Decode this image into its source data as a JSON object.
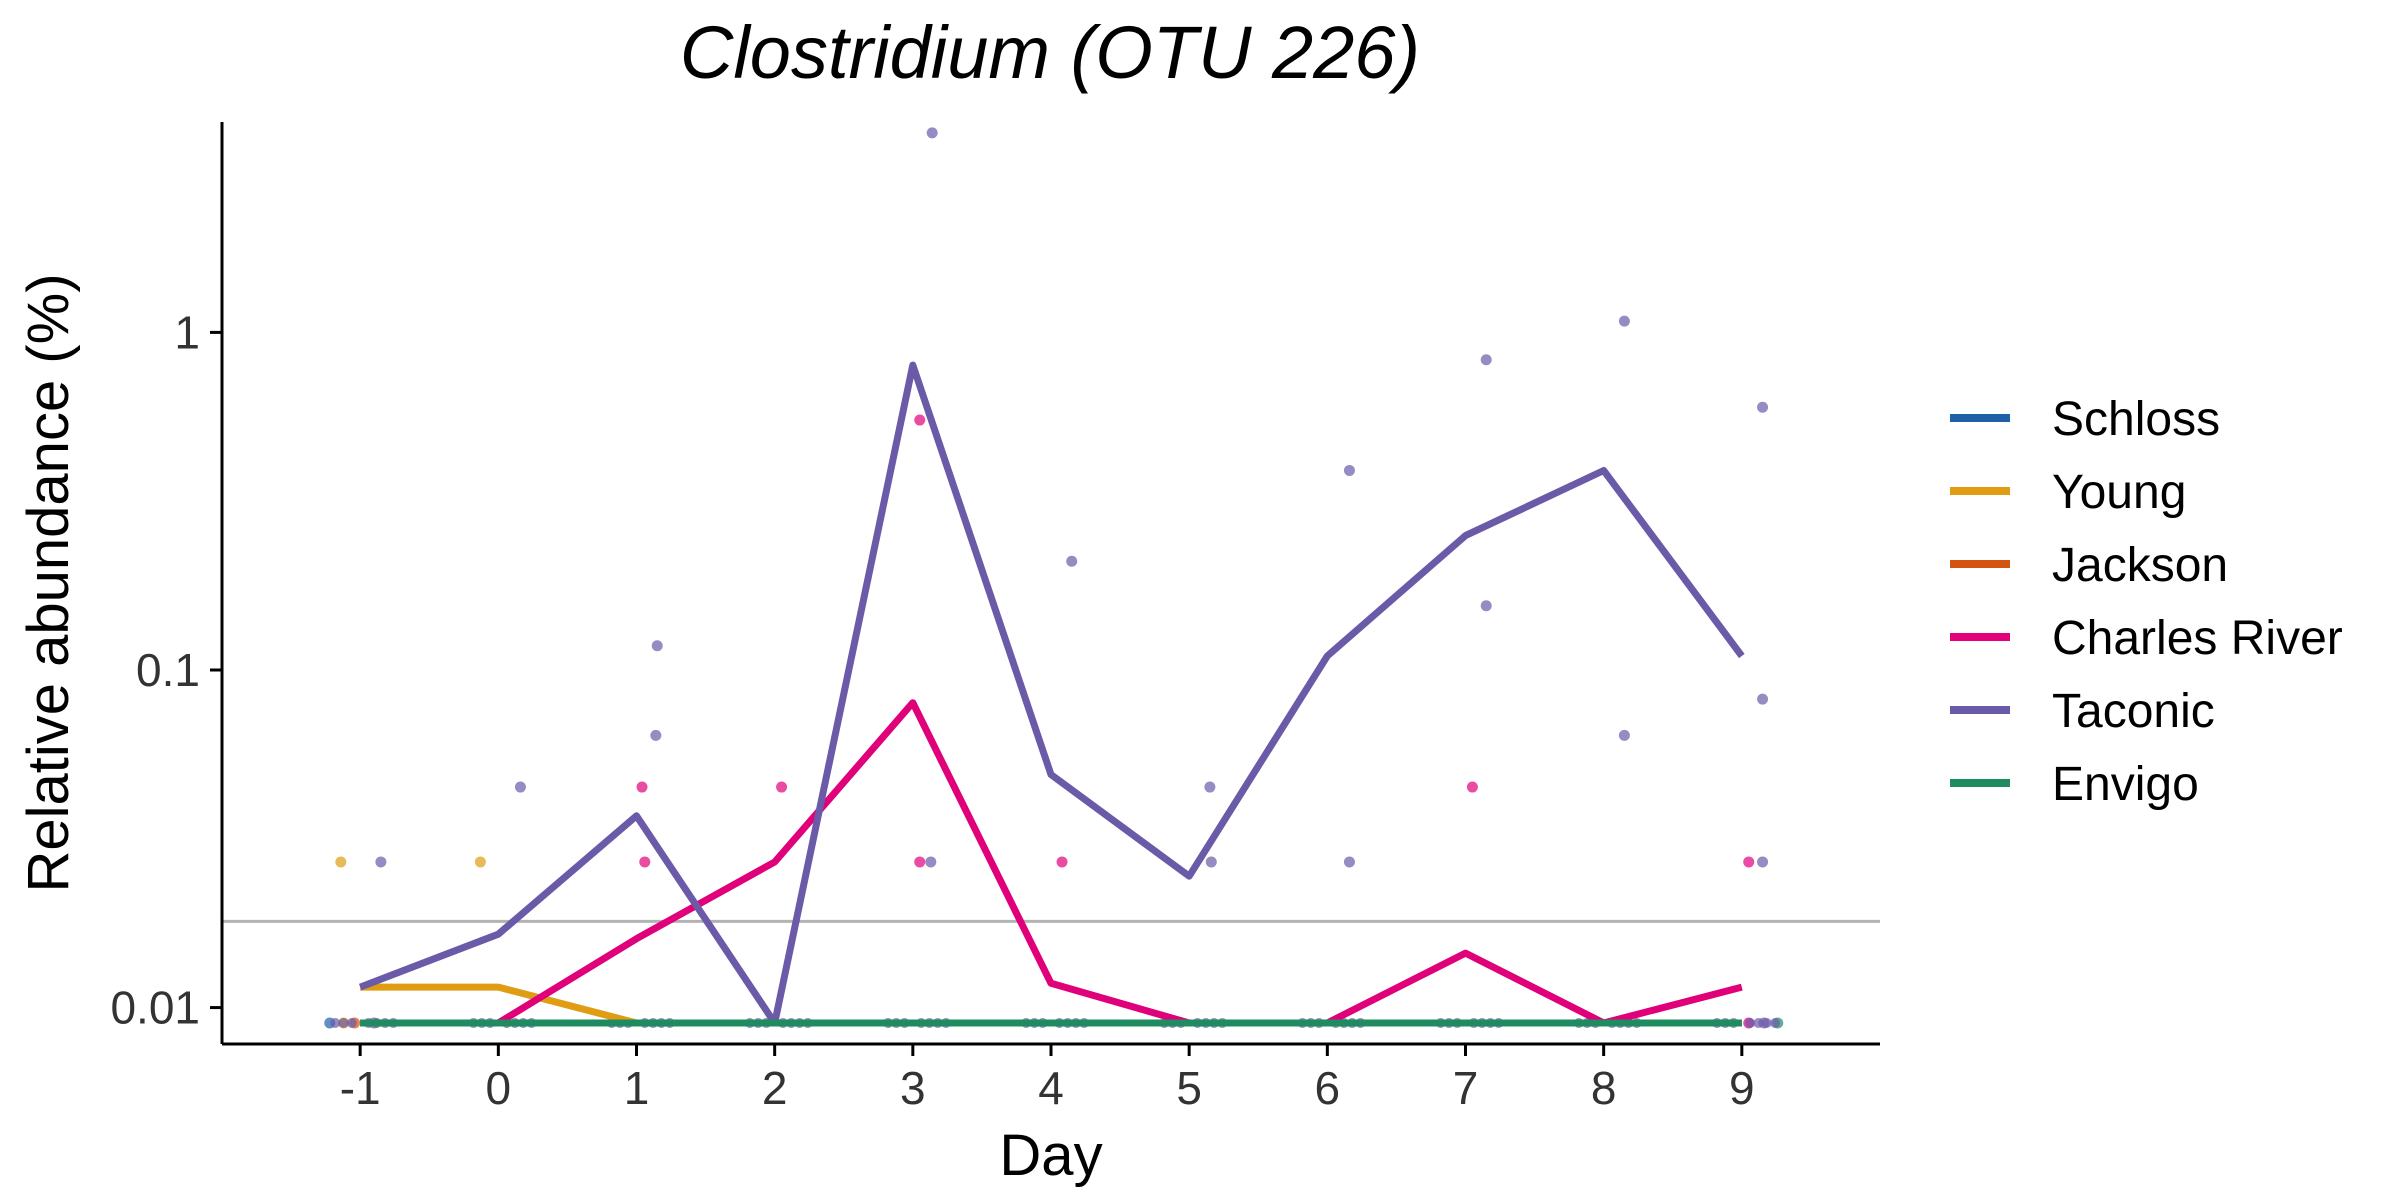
{
  "chart_data": {
    "type": "line",
    "title": "Clostridium (OTU 226)",
    "xlabel": "Day",
    "ylabel": "Relative abundance (%)",
    "y_scale": "log10",
    "xlim": [
      -2,
      10
    ],
    "ylim": [
      0.0078,
      4.2
    ],
    "x_ticks": [
      -1,
      0,
      1,
      2,
      3,
      4,
      5,
      6,
      7,
      8,
      9
    ],
    "y_ticks": [
      {
        "value": 1,
        "label": "1"
      },
      {
        "value": 0.1,
        "label": "0.1"
      },
      {
        "value": 0.01,
        "label": "0.01"
      }
    ],
    "threshold": 0.018,
    "legend_position": "right",
    "grid": false,
    "x": [
      -1,
      0,
      1,
      2,
      3,
      4,
      5,
      6,
      7,
      8,
      9
    ],
    "series": [
      {
        "name": "Schloss",
        "color": "#1f5fa8",
        "values": [
          0.009,
          0.009,
          0.009,
          0.009,
          0.009,
          0.009,
          0.009,
          0.009,
          0.009,
          0.009,
          0.009
        ]
      },
      {
        "name": "Young",
        "color": "#e09c13",
        "values": [
          0.0115,
          0.0115,
          0.009,
          0.009,
          0.009,
          0.009,
          0.009,
          0.009,
          0.009,
          0.009,
          0.009
        ]
      },
      {
        "name": "Jackson",
        "color": "#d35411",
        "values": [
          0.009,
          0.009,
          0.009,
          0.009,
          0.009,
          0.009,
          0.009,
          0.009,
          0.009,
          0.009,
          0.009
        ]
      },
      {
        "name": "Charles River",
        "color": "#e0007a",
        "values": [
          null,
          0.009,
          0.016,
          0.027,
          0.08,
          0.0118,
          0.009,
          0.009,
          0.0145,
          0.009,
          0.0115
        ]
      },
      {
        "name": "Taconic",
        "color": "#6a5aa8",
        "values": [
          0.0115,
          0.0165,
          0.037,
          0.009,
          0.8,
          0.049,
          0.0245,
          0.11,
          0.25,
          0.39,
          0.11
        ]
      },
      {
        "name": "Envigo",
        "color": "#1f8c60",
        "values": [
          0.009,
          0.009,
          0.009,
          0.009,
          0.009,
          0.009,
          0.009,
          0.009,
          0.009,
          0.009,
          0.009
        ]
      }
    ],
    "points": [
      {
        "series": "Schloss",
        "x": -1.22,
        "y": 0.009
      },
      {
        "series": "Young",
        "x": -1.14,
        "y": 0.027
      },
      {
        "series": "Young",
        "x": -1.12,
        "y": 0.009
      },
      {
        "series": "Jackson",
        "x": -1.04,
        "y": 0.009
      },
      {
        "series": "Taconic",
        "x": -0.85,
        "y": 0.027
      },
      {
        "series": "Taconic",
        "x": -0.9,
        "y": 0.009
      },
      {
        "series": "Young",
        "x": -0.13,
        "y": 0.027
      },
      {
        "series": "Taconic",
        "x": 0.16,
        "y": 0.045
      },
      {
        "series": "Charles River",
        "x": 1.04,
        "y": 0.045
      },
      {
        "series": "Charles River",
        "x": 1.06,
        "y": 0.027
      },
      {
        "series": "Taconic",
        "x": 1.15,
        "y": 0.118
      },
      {
        "series": "Taconic",
        "x": 1.14,
        "y": 0.064
      },
      {
        "series": "Charles River",
        "x": 2.05,
        "y": 0.045
      },
      {
        "series": "Charles River",
        "x": 3.05,
        "y": 0.55
      },
      {
        "series": "Charles River",
        "x": 3.05,
        "y": 0.027
      },
      {
        "series": "Taconic",
        "x": 3.14,
        "y": 3.9
      },
      {
        "series": "Taconic",
        "x": 3.13,
        "y": 0.027
      },
      {
        "series": "Charles River",
        "x": 4.08,
        "y": 0.027
      },
      {
        "series": "Taconic",
        "x": 4.15,
        "y": 0.21
      },
      {
        "series": "Taconic",
        "x": 5.15,
        "y": 0.045
      },
      {
        "series": "Taconic",
        "x": 5.16,
        "y": 0.027
      },
      {
        "series": "Taconic",
        "x": 6.16,
        "y": 0.39
      },
      {
        "series": "Taconic",
        "x": 6.16,
        "y": 0.027
      },
      {
        "series": "Charles River",
        "x": 7.05,
        "y": 0.045
      },
      {
        "series": "Taconic",
        "x": 7.15,
        "y": 0.83
      },
      {
        "series": "Taconic",
        "x": 7.15,
        "y": 0.155
      },
      {
        "series": "Taconic",
        "x": 8.15,
        "y": 1.08
      },
      {
        "series": "Taconic",
        "x": 8.15,
        "y": 0.064
      },
      {
        "series": "Charles River",
        "x": 9.05,
        "y": 0.027
      },
      {
        "series": "Taconic",
        "x": 9.15,
        "y": 0.6
      },
      {
        "series": "Taconic",
        "x": 9.15,
        "y": 0.082
      },
      {
        "series": "Taconic",
        "x": 9.15,
        "y": 0.027
      },
      {
        "series": "Charles River",
        "x": 9.05,
        "y": 0.009
      },
      {
        "series": "Taconic",
        "x": 9.16,
        "y": 0.009
      },
      {
        "series": "Envigo",
        "x": 9.26,
        "y": 0.009
      }
    ],
    "baseline_points": {
      "value": 0.009,
      "series": "Taconic",
      "offsets": [
        -0.18,
        -0.12,
        -0.06,
        0.06,
        0.12,
        0.18,
        0.24
      ]
    }
  }
}
